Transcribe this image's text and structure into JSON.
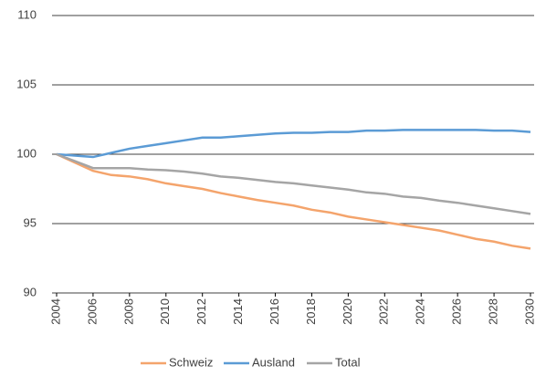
{
  "chart_data": {
    "type": "line",
    "x": [
      2004,
      2005,
      2006,
      2007,
      2008,
      2009,
      2010,
      2011,
      2012,
      2013,
      2014,
      2015,
      2016,
      2017,
      2018,
      2019,
      2020,
      2021,
      2022,
      2023,
      2024,
      2025,
      2026,
      2027,
      2028,
      2029,
      2030
    ],
    "series": [
      {
        "name": "Schweiz",
        "color": "#f4a46c",
        "values": [
          100,
          99.4,
          98.8,
          98.5,
          98.4,
          98.2,
          97.9,
          97.7,
          97.5,
          97.2,
          96.95,
          96.7,
          96.5,
          96.3,
          96.0,
          95.8,
          95.5,
          95.3,
          95.1,
          94.9,
          94.7,
          94.5,
          94.2,
          93.9,
          93.7,
          93.4,
          93.2
        ]
      },
      {
        "name": "Ausland",
        "color": "#5b9bd5",
        "values": [
          100,
          99.9,
          99.8,
          100.1,
          100.4,
          100.6,
          100.8,
          101.0,
          101.2,
          101.2,
          101.3,
          101.4,
          101.5,
          101.55,
          101.55,
          101.6,
          101.6,
          101.7,
          101.7,
          101.75,
          101.75,
          101.75,
          101.75,
          101.75,
          101.7,
          101.7,
          101.6
        ]
      },
      {
        "name": "Total",
        "color": "#a5a5a5",
        "values": [
          100,
          99.5,
          99.0,
          99.0,
          99.0,
          98.9,
          98.85,
          98.75,
          98.6,
          98.4,
          98.3,
          98.15,
          98.0,
          97.9,
          97.75,
          97.6,
          97.45,
          97.25,
          97.15,
          96.95,
          96.85,
          96.65,
          96.5,
          96.3,
          96.1,
          95.9,
          95.7
        ]
      }
    ],
    "xlim": [
      2004,
      2030
    ],
    "xticks": [
      2004,
      2006,
      2008,
      2010,
      2012,
      2014,
      2016,
      2018,
      2020,
      2022,
      2024,
      2026,
      2028,
      2030
    ],
    "ylim": [
      90,
      110
    ],
    "yticks": [
      90,
      95,
      100,
      105,
      110
    ],
    "grid": true,
    "legend": "bottom"
  }
}
